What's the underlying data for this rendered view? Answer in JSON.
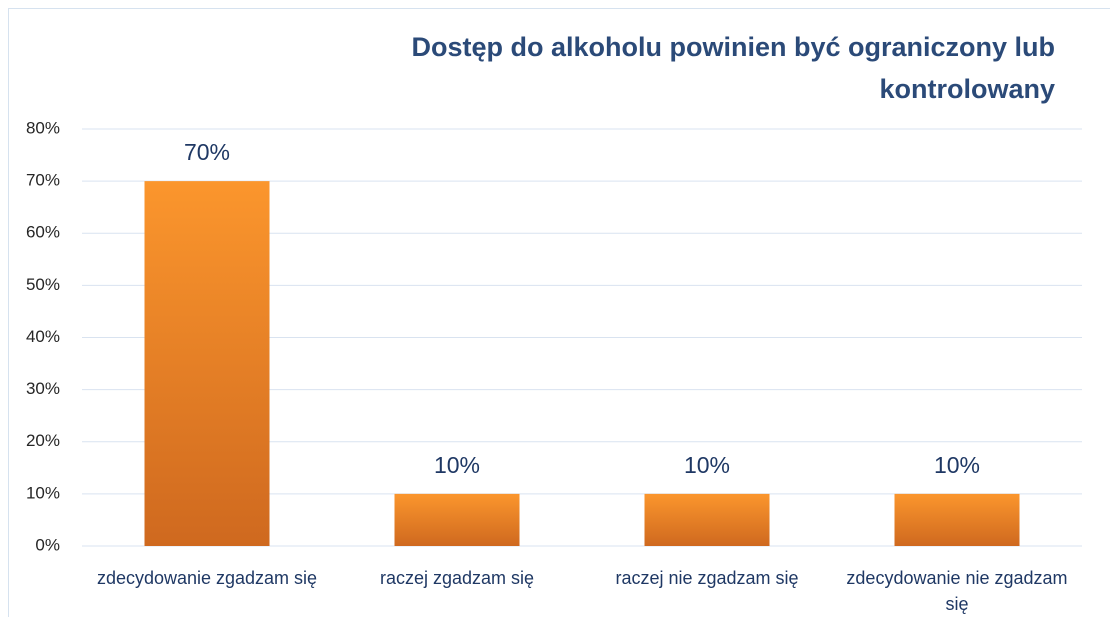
{
  "chart_data": {
    "type": "bar",
    "title": "Dostęp do alkoholu powinien być ograniczony lub kontrolowany",
    "categories": [
      "zdecydowanie zgadzam się",
      "raczej zgadzam się",
      "raczej nie zgadzam się",
      "zdecydowanie nie zgadzam się"
    ],
    "values": [
      70,
      10,
      10,
      10
    ],
    "value_labels": [
      "70%",
      "10%",
      "10%",
      "10%"
    ],
    "color": "#f7941d",
    "ylim": [
      0,
      80
    ],
    "yticks": [
      {
        "value": 0,
        "label": "0%"
      },
      {
        "value": 10,
        "label": "10%"
      },
      {
        "value": 20,
        "label": "20%"
      },
      {
        "value": 30,
        "label": "30%"
      },
      {
        "value": 40,
        "label": "40%"
      },
      {
        "value": 50,
        "label": "50%"
      },
      {
        "value": 60,
        "label": "60%"
      },
      {
        "value": 70,
        "label": "70%"
      },
      {
        "value": 80,
        "label": "80%"
      }
    ],
    "grid": true
  }
}
